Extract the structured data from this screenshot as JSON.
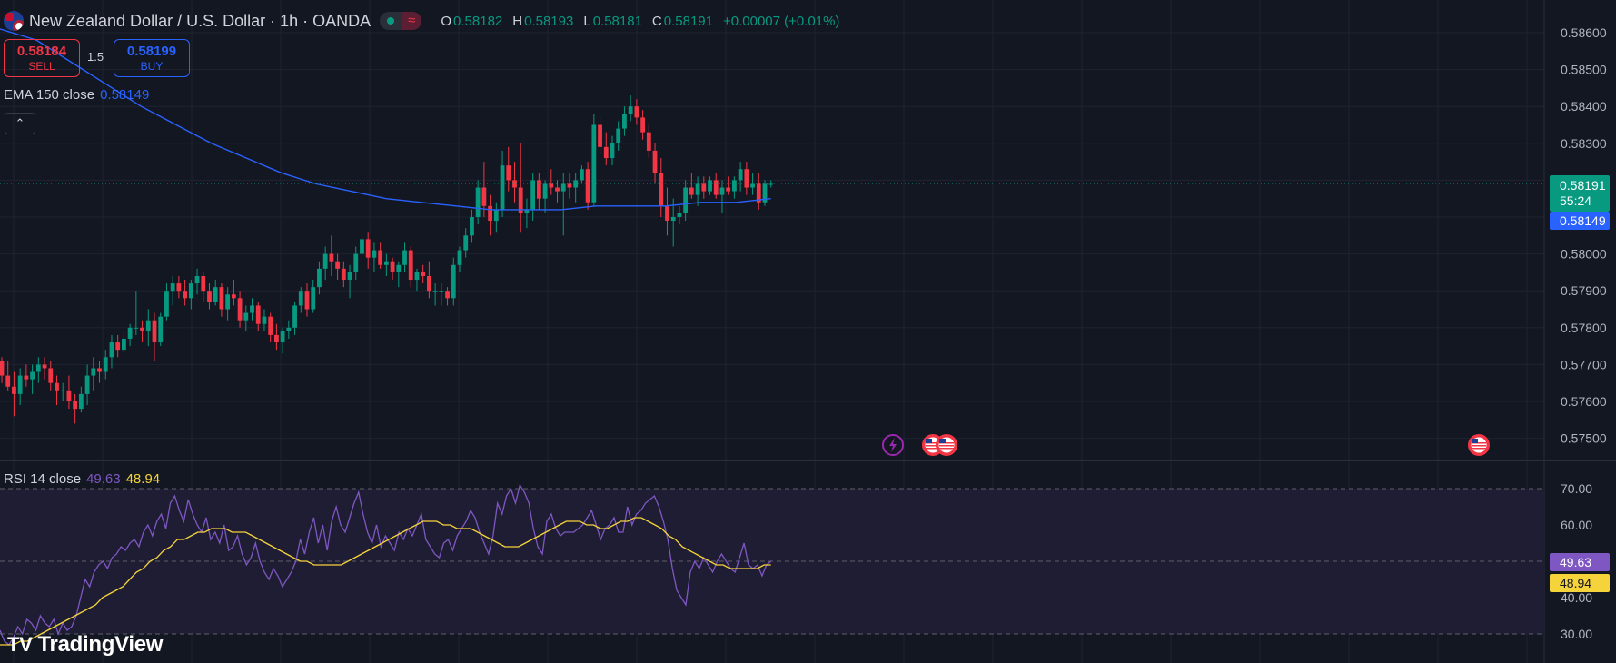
{
  "header": {
    "title": "New Zealand Dollar / U.S. Dollar · 1h · OANDA",
    "open_label": "O",
    "open": "0.58182",
    "high_label": "H",
    "high": "0.58193",
    "low_label": "L",
    "low": "0.58181",
    "close_label": "C",
    "close": "0.58191",
    "change": "+0.00007 (+0.01%)",
    "status_icon": "market-open-dot-icon",
    "wave_icon": "≈"
  },
  "trade": {
    "sell_price": "0.58184",
    "sell_label": "SELL",
    "spread": "1.5",
    "buy_price": "0.58199",
    "buy_label": "BUY"
  },
  "indicators": {
    "ema_label": "EMA 150 close",
    "ema_value": "0.58149",
    "rsi_label": "RSI 14 close",
    "rsi_value": "49.63",
    "rsi_ma_value": "48.94"
  },
  "price_scale": {
    "last_price": "0.58191",
    "countdown": "55:24",
    "ema_badge": "0.58149",
    "rsi_badge": "49.63",
    "rsi_ma_badge": "48.94"
  },
  "branding": {
    "logo_text": "TradingView",
    "logo_icon": "TV"
  },
  "colors": {
    "up": "#089981",
    "down": "#f23645",
    "ema": "#2962ff",
    "rsi": "#7e57c2",
    "rsi_ma": "#f5d33a",
    "background": "#131722"
  },
  "chart_data": [
    {
      "type": "candlestick",
      "title": "New Zealand Dollar / U.S. Dollar · 1h · OANDA",
      "ylim": [
        0.5745,
        0.5863
      ],
      "y_ticks": [
        "0.58600",
        "0.58500",
        "0.58400",
        "0.58300",
        "0.58200",
        "0.58100",
        "0.58000",
        "0.57900",
        "0.57800",
        "0.57700",
        "0.57600",
        "0.57500"
      ],
      "last_price": 0.58191,
      "candles_ohlc": [
        [
          0.5771,
          0.5772,
          0.5765,
          0.5767
        ],
        [
          0.5767,
          0.5771,
          0.5763,
          0.5764
        ],
        [
          0.5764,
          0.5768,
          0.5756,
          0.5762
        ],
        [
          0.5762,
          0.5769,
          0.5759,
          0.5767
        ],
        [
          0.5767,
          0.577,
          0.5764,
          0.5766
        ],
        [
          0.5766,
          0.577,
          0.5762,
          0.5768
        ],
        [
          0.5768,
          0.5772,
          0.5765,
          0.577
        ],
        [
          0.577,
          0.5772,
          0.5766,
          0.5769
        ],
        [
          0.5769,
          0.5771,
          0.5763,
          0.5765
        ],
        [
          0.5765,
          0.5767,
          0.5759,
          0.5763
        ],
        [
          0.5763,
          0.5765,
          0.576,
          0.5763
        ],
        [
          0.5763,
          0.5767,
          0.5758,
          0.576
        ],
        [
          0.576,
          0.5762,
          0.5754,
          0.5758
        ],
        [
          0.5758,
          0.5764,
          0.5757,
          0.5762
        ],
        [
          0.5762,
          0.577,
          0.5759,
          0.5767
        ],
        [
          0.5767,
          0.5772,
          0.5763,
          0.5769
        ],
        [
          0.5769,
          0.5771,
          0.5765,
          0.5768
        ],
        [
          0.5768,
          0.5774,
          0.5766,
          0.5772
        ],
        [
          0.5772,
          0.5778,
          0.5769,
          0.5776
        ],
        [
          0.5776,
          0.5778,
          0.5772,
          0.5774
        ],
        [
          0.5774,
          0.5779,
          0.5773,
          0.5777
        ],
        [
          0.5777,
          0.5781,
          0.5775,
          0.578
        ],
        [
          0.578,
          0.579,
          0.5778,
          0.578
        ],
        [
          0.578,
          0.5782,
          0.5776,
          0.5779
        ],
        [
          0.5779,
          0.5785,
          0.5775,
          0.5782
        ],
        [
          0.5782,
          0.5784,
          0.5771,
          0.5776
        ],
        [
          0.5776,
          0.5784,
          0.5775,
          0.5783
        ],
        [
          0.5783,
          0.5792,
          0.5782,
          0.579
        ],
        [
          0.579,
          0.5794,
          0.5786,
          0.5792
        ],
        [
          0.5792,
          0.5794,
          0.5788,
          0.579
        ],
        [
          0.579,
          0.5793,
          0.5786,
          0.5788
        ],
        [
          0.5788,
          0.5793,
          0.5785,
          0.5792
        ],
        [
          0.5792,
          0.5796,
          0.5789,
          0.5794
        ],
        [
          0.5794,
          0.5795,
          0.5787,
          0.579
        ],
        [
          0.579,
          0.5792,
          0.5785,
          0.5787
        ],
        [
          0.5787,
          0.5793,
          0.5786,
          0.5791
        ],
        [
          0.5791,
          0.5792,
          0.5783,
          0.5785
        ],
        [
          0.5785,
          0.5791,
          0.5782,
          0.5789
        ],
        [
          0.5789,
          0.5793,
          0.5786,
          0.5788
        ],
        [
          0.5788,
          0.579,
          0.578,
          0.5782
        ],
        [
          0.5782,
          0.5786,
          0.5779,
          0.5784
        ],
        [
          0.5784,
          0.5788,
          0.5782,
          0.5786
        ],
        [
          0.5786,
          0.5787,
          0.5779,
          0.5781
        ],
        [
          0.5781,
          0.5785,
          0.5779,
          0.5783
        ],
        [
          0.5783,
          0.5784,
          0.5776,
          0.5778
        ],
        [
          0.5778,
          0.5781,
          0.5774,
          0.5776
        ],
        [
          0.5776,
          0.578,
          0.5773,
          0.5779
        ],
        [
          0.5779,
          0.5782,
          0.5777,
          0.578
        ],
        [
          0.578,
          0.5787,
          0.5778,
          0.5786
        ],
        [
          0.5786,
          0.5791,
          0.5784,
          0.579
        ],
        [
          0.579,
          0.5792,
          0.5783,
          0.5785
        ],
        [
          0.5785,
          0.5793,
          0.5784,
          0.5791
        ],
        [
          0.5791,
          0.5798,
          0.5789,
          0.5796
        ],
        [
          0.5796,
          0.5802,
          0.5793,
          0.58
        ],
        [
          0.58,
          0.5805,
          0.5794,
          0.5798
        ],
        [
          0.5798,
          0.58,
          0.5793,
          0.5796
        ],
        [
          0.5796,
          0.5798,
          0.5791,
          0.5793
        ],
        [
          0.5793,
          0.5797,
          0.5788,
          0.5795
        ],
        [
          0.5795,
          0.5802,
          0.5793,
          0.58
        ],
        [
          0.58,
          0.5806,
          0.5798,
          0.5804
        ],
        [
          0.5804,
          0.5806,
          0.5796,
          0.5799
        ],
        [
          0.5799,
          0.5803,
          0.5795,
          0.5801
        ],
        [
          0.5801,
          0.5803,
          0.5796,
          0.5797
        ],
        [
          0.5797,
          0.58,
          0.5794,
          0.5798
        ],
        [
          0.5798,
          0.5799,
          0.5793,
          0.5795
        ],
        [
          0.5795,
          0.5798,
          0.5791,
          0.5797
        ],
        [
          0.5797,
          0.5803,
          0.5795,
          0.5801
        ],
        [
          0.5801,
          0.5802,
          0.5791,
          0.5793
        ],
        [
          0.5793,
          0.5796,
          0.579,
          0.5795
        ],
        [
          0.5795,
          0.5797,
          0.5792,
          0.5794
        ],
        [
          0.5794,
          0.5798,
          0.5788,
          0.579
        ],
        [
          0.579,
          0.5792,
          0.5786,
          0.579
        ],
        [
          0.579,
          0.5792,
          0.5786,
          0.579
        ],
        [
          0.579,
          0.5791,
          0.5786,
          0.5788
        ],
        [
          0.5788,
          0.5799,
          0.5786,
          0.5797
        ],
        [
          0.5797,
          0.5802,
          0.5795,
          0.5801
        ],
        [
          0.5801,
          0.5807,
          0.5799,
          0.5805
        ],
        [
          0.5805,
          0.5812,
          0.5803,
          0.581
        ],
        [
          0.581,
          0.582,
          0.5808,
          0.5818
        ],
        [
          0.5818,
          0.5825,
          0.581,
          0.5813
        ],
        [
          0.5813,
          0.5816,
          0.5805,
          0.5809
        ],
        [
          0.5809,
          0.5814,
          0.5806,
          0.5812
        ],
        [
          0.5812,
          0.5828,
          0.581,
          0.5824
        ],
        [
          0.5824,
          0.5829,
          0.5817,
          0.582
        ],
        [
          0.582,
          0.5825,
          0.5814,
          0.5818
        ],
        [
          0.5818,
          0.583,
          0.5806,
          0.5811
        ],
        [
          0.5811,
          0.5815,
          0.5807,
          0.5812
        ],
        [
          0.5812,
          0.5822,
          0.5809,
          0.582
        ],
        [
          0.582,
          0.5822,
          0.5812,
          0.5815
        ],
        [
          0.5815,
          0.582,
          0.5811,
          0.5819
        ],
        [
          0.5819,
          0.5823,
          0.5816,
          0.5818
        ],
        [
          0.5818,
          0.582,
          0.5814,
          0.5817
        ],
        [
          0.5817,
          0.5822,
          0.5805,
          0.5819
        ],
        [
          0.5819,
          0.5822,
          0.5815,
          0.5818
        ],
        [
          0.5818,
          0.5822,
          0.5814,
          0.582
        ],
        [
          0.582,
          0.5824,
          0.5819,
          0.5823
        ],
        [
          0.5823,
          0.5825,
          0.5812,
          0.5814
        ],
        [
          0.5814,
          0.5838,
          0.5813,
          0.5835
        ],
        [
          0.5835,
          0.5837,
          0.5827,
          0.5829
        ],
        [
          0.5829,
          0.5833,
          0.5824,
          0.5826
        ],
        [
          0.5826,
          0.5832,
          0.5824,
          0.583
        ],
        [
          0.583,
          0.5836,
          0.5828,
          0.5834
        ],
        [
          0.5834,
          0.584,
          0.5832,
          0.5838
        ],
        [
          0.5838,
          0.5843,
          0.5836,
          0.584
        ],
        [
          0.584,
          0.5842,
          0.5835,
          0.5837
        ],
        [
          0.5837,
          0.5839,
          0.5831,
          0.5833
        ],
        [
          0.5833,
          0.5835,
          0.5826,
          0.5828
        ],
        [
          0.5828,
          0.583,
          0.5819,
          0.5822
        ],
        [
          0.5822,
          0.5826,
          0.581,
          0.5813
        ],
        [
          0.5813,
          0.5818,
          0.5805,
          0.5809
        ],
        [
          0.5809,
          0.5815,
          0.5802,
          0.581
        ],
        [
          0.581,
          0.5813,
          0.5808,
          0.5811
        ],
        [
          0.5811,
          0.582,
          0.5809,
          0.5818
        ],
        [
          0.5818,
          0.5822,
          0.5815,
          0.5816
        ],
        [
          0.5816,
          0.5821,
          0.5813,
          0.5819
        ],
        [
          0.5819,
          0.5821,
          0.5815,
          0.5817
        ],
        [
          0.5817,
          0.5821,
          0.5816,
          0.582
        ],
        [
          0.582,
          0.5822,
          0.5815,
          0.5816
        ],
        [
          0.5816,
          0.582,
          0.5811,
          0.5818
        ],
        [
          0.5818,
          0.5821,
          0.5816,
          0.5817
        ],
        [
          0.5817,
          0.5821,
          0.5815,
          0.582
        ],
        [
          0.582,
          0.5825,
          0.5817,
          0.5823
        ],
        [
          0.5823,
          0.5825,
          0.5816,
          0.5818
        ],
        [
          0.5818,
          0.5822,
          0.5816,
          0.5819
        ],
        [
          0.5819,
          0.5822,
          0.5812,
          0.5814
        ],
        [
          0.5814,
          0.582,
          0.5813,
          0.5819
        ],
        [
          0.5819,
          0.582,
          0.5818,
          0.5819
        ]
      ],
      "series": [
        {
          "name": "EMA 150 close",
          "values_key": "ema_path"
        }
      ]
    },
    {
      "type": "line",
      "title": "RSI 14 close",
      "ylim": [
        26,
        72
      ],
      "y_ticks": [
        "70.00",
        "60.00",
        "50.00",
        "40.00",
        "30.00"
      ],
      "bands": [
        30,
        50,
        70
      ],
      "series": [
        {
          "name": "RSI 14 close",
          "values": [
            31,
            28,
            27,
            29,
            32,
            30,
            34,
            33,
            31,
            35,
            33,
            32,
            34,
            30,
            33,
            31,
            32,
            35,
            40,
            45,
            43,
            47,
            49,
            50,
            48,
            51,
            52,
            54,
            53,
            55,
            56,
            54,
            58,
            60,
            57,
            61,
            63,
            59,
            66,
            68,
            64,
            61,
            67,
            63,
            60,
            58,
            62,
            56,
            58,
            55,
            60,
            53,
            54,
            57,
            52,
            49,
            51,
            55,
            50,
            47,
            45,
            48,
            46,
            43,
            45,
            47,
            50,
            56,
            52,
            58,
            62,
            55,
            60,
            53,
            61,
            65,
            60,
            58,
            62,
            66,
            69,
            63,
            58,
            55,
            60,
            54,
            57,
            55,
            53,
            58,
            56,
            59,
            57,
            60,
            63,
            56,
            54,
            52,
            51,
            55,
            56,
            53,
            57,
            59,
            61,
            64,
            62,
            58,
            55,
            52,
            57,
            66,
            63,
            68,
            70,
            66,
            71,
            69,
            66,
            59,
            54,
            52,
            61,
            63,
            59,
            57,
            58,
            58,
            58,
            59,
            60,
            62,
            64,
            60,
            56,
            59,
            60,
            62,
            58,
            58,
            65,
            60,
            63,
            64,
            66,
            67,
            68,
            65,
            61,
            56,
            48,
            42,
            40,
            38,
            47,
            50,
            48,
            51,
            49,
            47,
            50,
            52,
            50,
            48,
            47,
            51,
            55,
            49,
            48,
            49,
            46,
            49,
            50
          ]
        },
        {
          "name": "RSI MA",
          "values": [
            27,
            27,
            27,
            28,
            28,
            29,
            30,
            31,
            32,
            33,
            34,
            35,
            36,
            37,
            38,
            40,
            41,
            42,
            43,
            45,
            47,
            48,
            50,
            51,
            53,
            54,
            56,
            56,
            57,
            58,
            58,
            59,
            59,
            59,
            58,
            58,
            58,
            57,
            56,
            55,
            54,
            53,
            52,
            51,
            50,
            50,
            49,
            49,
            49,
            49,
            49,
            50,
            51,
            52,
            53,
            54,
            55,
            56,
            57,
            58,
            59,
            60,
            61,
            61,
            61,
            60,
            60,
            59,
            59,
            59,
            58,
            57,
            56,
            55,
            54,
            54,
            54,
            55,
            56,
            57,
            58,
            59,
            60,
            61,
            61,
            61,
            60,
            60,
            59,
            59,
            60,
            61,
            61,
            62,
            62,
            61,
            60,
            59,
            57,
            56,
            54,
            53,
            52,
            51,
            50,
            49,
            49,
            48,
            48,
            48,
            48,
            48,
            49,
            49
          ]
        }
      ]
    }
  ],
  "ema_path_values": [
    0.5858,
    0.5852,
    0.5846,
    0.584,
    0.5835,
    0.583,
    0.5826,
    0.5822,
    0.5819,
    0.5817,
    0.5815,
    0.5814,
    0.5813,
    0.5812,
    0.5812,
    0.5812,
    0.5813,
    0.5813,
    0.5813,
    0.5814,
    0.5814,
    0.5815
  ]
}
